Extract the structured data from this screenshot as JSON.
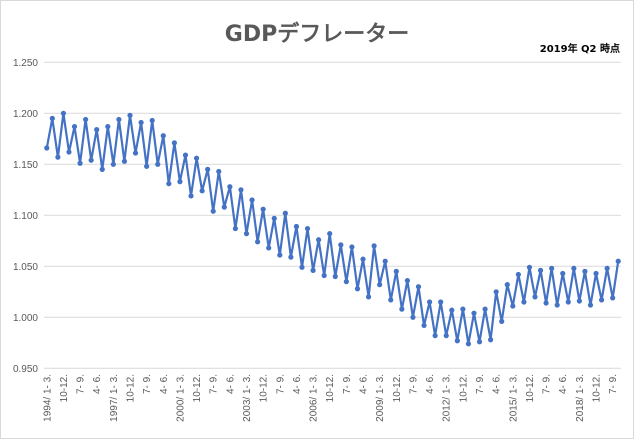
{
  "chart_data": {
    "type": "line",
    "title": "GDPデフレーター",
    "subtitle": "2019年 Q2 時点",
    "xlabel": "",
    "ylabel": "",
    "ylim": [
      0.95,
      1.25
    ],
    "y_ticks": [
      "0.950",
      "1.000",
      "1.050",
      "1.100",
      "1.150",
      "1.200",
      "1.250"
    ],
    "y_tick_values": [
      0.95,
      1.0,
      1.05,
      1.1,
      1.15,
      1.2,
      1.25
    ],
    "grid": true,
    "legend": "none",
    "x_start": "1994Q1",
    "x_tick_every": 3,
    "x_ticks": [
      "1994/ 1- 3.",
      "10-12.",
      "7- 9.",
      "4- 6.",
      "1997/ 1- 3.",
      "10-12.",
      "7- 9.",
      "4- 6.",
      "2000/ 1- 3.",
      "10-12.",
      "7- 9.",
      "4- 6.",
      "2003/ 1- 3.",
      "10-12.",
      "7- 9.",
      "4- 6.",
      "2006/ 1- 3.",
      "10-12.",
      "7- 9.",
      "4- 6.",
      "2009/ 1- 3.",
      "10-12.",
      "7- 9.",
      "4- 6.",
      "2012/ 1- 3.",
      "10-12.",
      "7- 9.",
      "4- 6.",
      "2015/ 1- 3.",
      "10-12.",
      "7- 9.",
      "4- 6.",
      "2018/ 1- 3.",
      "10-12.",
      "7- 9."
    ],
    "series": [
      {
        "name": "GDPデフレーター",
        "color": "#4472C4",
        "values": [
          1.166,
          1.195,
          1.157,
          1.2,
          1.162,
          1.187,
          1.151,
          1.194,
          1.154,
          1.184,
          1.145,
          1.187,
          1.15,
          1.194,
          1.153,
          1.198,
          1.161,
          1.191,
          1.148,
          1.193,
          1.15,
          1.178,
          1.131,
          1.171,
          1.133,
          1.159,
          1.119,
          1.156,
          1.124,
          1.145,
          1.104,
          1.143,
          1.108,
          1.128,
          1.087,
          1.125,
          1.082,
          1.115,
          1.074,
          1.106,
          1.068,
          1.097,
          1.061,
          1.102,
          1.059,
          1.089,
          1.049,
          1.087,
          1.046,
          1.076,
          1.041,
          1.082,
          1.04,
          1.071,
          1.035,
          1.069,
          1.028,
          1.057,
          1.02,
          1.07,
          1.032,
          1.055,
          1.017,
          1.045,
          1.008,
          1.036,
          1.0,
          1.03,
          0.992,
          1.015,
          0.982,
          1.015,
          0.982,
          1.007,
          0.977,
          1.008,
          0.974,
          1.004,
          0.976,
          1.008,
          0.978,
          1.025,
          0.996,
          1.032,
          1.011,
          1.042,
          1.015,
          1.049,
          1.02,
          1.046,
          1.014,
          1.048,
          1.012,
          1.043,
          1.015,
          1.048,
          1.016,
          1.045,
          1.012,
          1.043,
          1.017,
          1.048,
          1.019,
          1.055
        ]
      }
    ]
  }
}
